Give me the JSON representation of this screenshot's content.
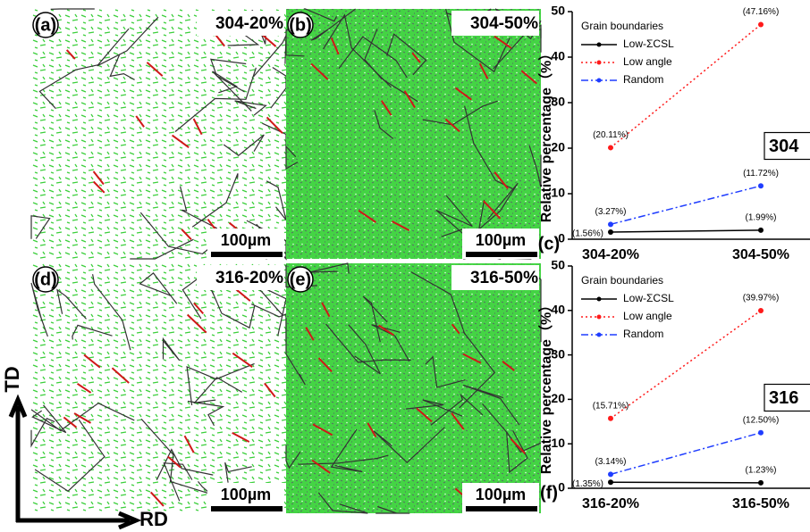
{
  "panels": [
    {
      "label": "(a)",
      "sample": "304-20%",
      "scale": "100µm"
    },
    {
      "label": "(b)",
      "sample": "304-50%",
      "scale": "100µm"
    },
    {
      "label": "(d)",
      "sample": "316-20%",
      "scale": "100µm"
    },
    {
      "label": "(e)",
      "sample": "316-50%",
      "scale": "100µm"
    }
  ],
  "directions": {
    "vertical": "TD",
    "horizontal": "RD"
  },
  "chart_data": [
    {
      "type": "line",
      "panel_label": "(c)",
      "tag": "304",
      "legend_title": "Grain boundaries",
      "y_label": "Relative percentage（%）",
      "categories": [
        "304-20%",
        "304-50%"
      ],
      "ylim": [
        0,
        50
      ],
      "yticks": [
        0,
        10,
        20,
        30,
        40,
        50
      ],
      "series": [
        {
          "name": "Low-ΣCSL",
          "color": "#000000",
          "dash": "solid",
          "values": [
            1.56,
            1.99
          ],
          "value_labels": [
            "(1.56%)",
            "(1.99%)"
          ]
        },
        {
          "name": "Low angle",
          "color": "#ff1a1a",
          "dash": "dot",
          "values": [
            20.11,
            47.16
          ],
          "value_labels": [
            "(20.11%)",
            "(47.16%)"
          ]
        },
        {
          "name": "Random",
          "color": "#1f3dff",
          "dash": "dashdot",
          "values": [
            3.27,
            11.72
          ],
          "value_labels": [
            "(3.27%)",
            "(11.72%)"
          ]
        }
      ]
    },
    {
      "type": "line",
      "panel_label": "(f)",
      "tag": "316",
      "legend_title": "Grain boundaries",
      "y_label": "Relative percentage（%）",
      "categories": [
        "316-20%",
        "316-50%"
      ],
      "ylim": [
        0,
        50
      ],
      "yticks": [
        0,
        10,
        20,
        30,
        40,
        50
      ],
      "series": [
        {
          "name": "Low-ΣCSL",
          "color": "#000000",
          "dash": "solid",
          "values": [
            1.35,
            1.23
          ],
          "value_labels": [
            "(1.35%)",
            "(1.23%)"
          ]
        },
        {
          "name": "Low angle",
          "color": "#ff1a1a",
          "dash": "dot",
          "values": [
            15.71,
            39.97
          ],
          "value_labels": [
            "(15.71%)",
            "(39.97%)"
          ]
        },
        {
          "name": "Random",
          "color": "#1f3dff",
          "dash": "dashdot",
          "values": [
            3.14,
            12.5
          ],
          "value_labels": [
            "(3.14%)",
            "(12.50%)"
          ]
        }
      ]
    }
  ]
}
